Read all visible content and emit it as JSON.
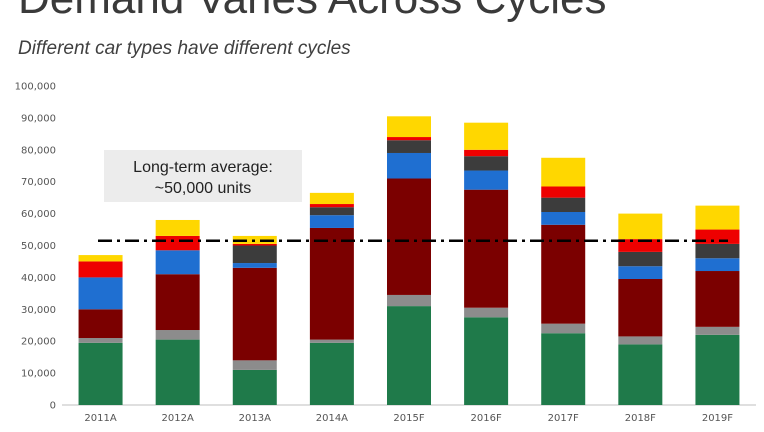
{
  "title": "Demand Varies Across Cycles",
  "subtitle": "Different car types have different cycles",
  "chart_data": {
    "type": "bar",
    "stacked": true,
    "categories": [
      "2011A",
      "2012A",
      "2013A",
      "2014A",
      "2015F",
      "2016F",
      "2017F",
      "2018F",
      "2019F"
    ],
    "series": [
      {
        "color": "#1f7a4a",
        "values": [
          19500,
          20500,
          11000,
          19500,
          31000,
          27500,
          22500,
          19000,
          22000
        ]
      },
      {
        "color": "#8c8c8c",
        "values": [
          1500,
          3000,
          3000,
          1000,
          3500,
          3000,
          3000,
          2500,
          2500
        ]
      },
      {
        "color": "#7b0000",
        "values": [
          9000,
          17500,
          29000,
          35000,
          36500,
          37000,
          31000,
          18000,
          17500
        ]
      },
      {
        "color": "#1f6fd1",
        "values": [
          10000,
          7500,
          1500,
          4000,
          8000,
          6000,
          4000,
          4000,
          4000
        ]
      },
      {
        "color": "#3c3c3c",
        "values": [
          0,
          0,
          5500,
          2500,
          4000,
          4500,
          4500,
          4500,
          4500
        ]
      },
      {
        "color": "#ee0000",
        "values": [
          5000,
          4500,
          500,
          1000,
          1000,
          2000,
          3500,
          4000,
          4500
        ]
      },
      {
        "color": "#ffd700",
        "values": [
          2000,
          5000,
          2500,
          3500,
          6500,
          8500,
          9000,
          8000,
          7500
        ]
      }
    ],
    "ylim": [
      0,
      100000
    ],
    "yticks": [
      "0",
      "10,000",
      "20,000",
      "30,000",
      "40,000",
      "50,000",
      "60,000",
      "70,000",
      "80,000",
      "90,000",
      "100,000"
    ],
    "reference_line": {
      "value": 51500,
      "style": "dash-dot",
      "color": "#000000"
    },
    "annotation": {
      "line1": "Long-term average:",
      "line2": "~50,000 units"
    },
    "grid": false,
    "legend": "none"
  }
}
